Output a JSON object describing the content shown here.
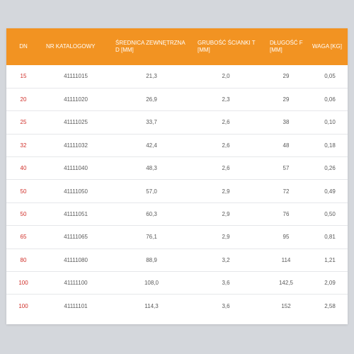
{
  "table": {
    "headers": [
      "DN",
      "NR KATALOGOWY",
      "ŚREDNICA ZEWNĘTRZNA D [MM]",
      "GRUBOŚĆ ŚCIANKI T [MM]",
      "DŁUGOŚĆ F [MM]",
      "WAGA [KG]"
    ],
    "rows": [
      [
        "15",
        "41111015",
        "21,3",
        "2,0",
        "29",
        "0,05"
      ],
      [
        "20",
        "41111020",
        "26,9",
        "2,3",
        "29",
        "0,06"
      ],
      [
        "25",
        "41111025",
        "33,7",
        "2,6",
        "38",
        "0,10"
      ],
      [
        "32",
        "41111032",
        "42,4",
        "2,6",
        "48",
        "0,18"
      ],
      [
        "40",
        "41111040",
        "48,3",
        "2,6",
        "57",
        "0,26"
      ],
      [
        "50",
        "41111050",
        "57,0",
        "2,9",
        "72",
        "0,49"
      ],
      [
        "50",
        "41111051",
        "60,3",
        "2,9",
        "76",
        "0,50"
      ],
      [
        "65",
        "41111065",
        "76,1",
        "2,9",
        "95",
        "0,81"
      ],
      [
        "80",
        "41111080",
        "88,9",
        "3,2",
        "114",
        "1,21"
      ],
      [
        "100",
        "41111100",
        "108,0",
        "3,6",
        "142,5",
        "2,09"
      ],
      [
        "100",
        "41111101",
        "114,3",
        "3,6",
        "152",
        "2,58"
      ]
    ]
  },
  "colors": {
    "header_bg": "#f29322",
    "dn_text": "#d0302a",
    "body_text": "#5a5a5a",
    "page_bg": "#d4d7dc"
  }
}
